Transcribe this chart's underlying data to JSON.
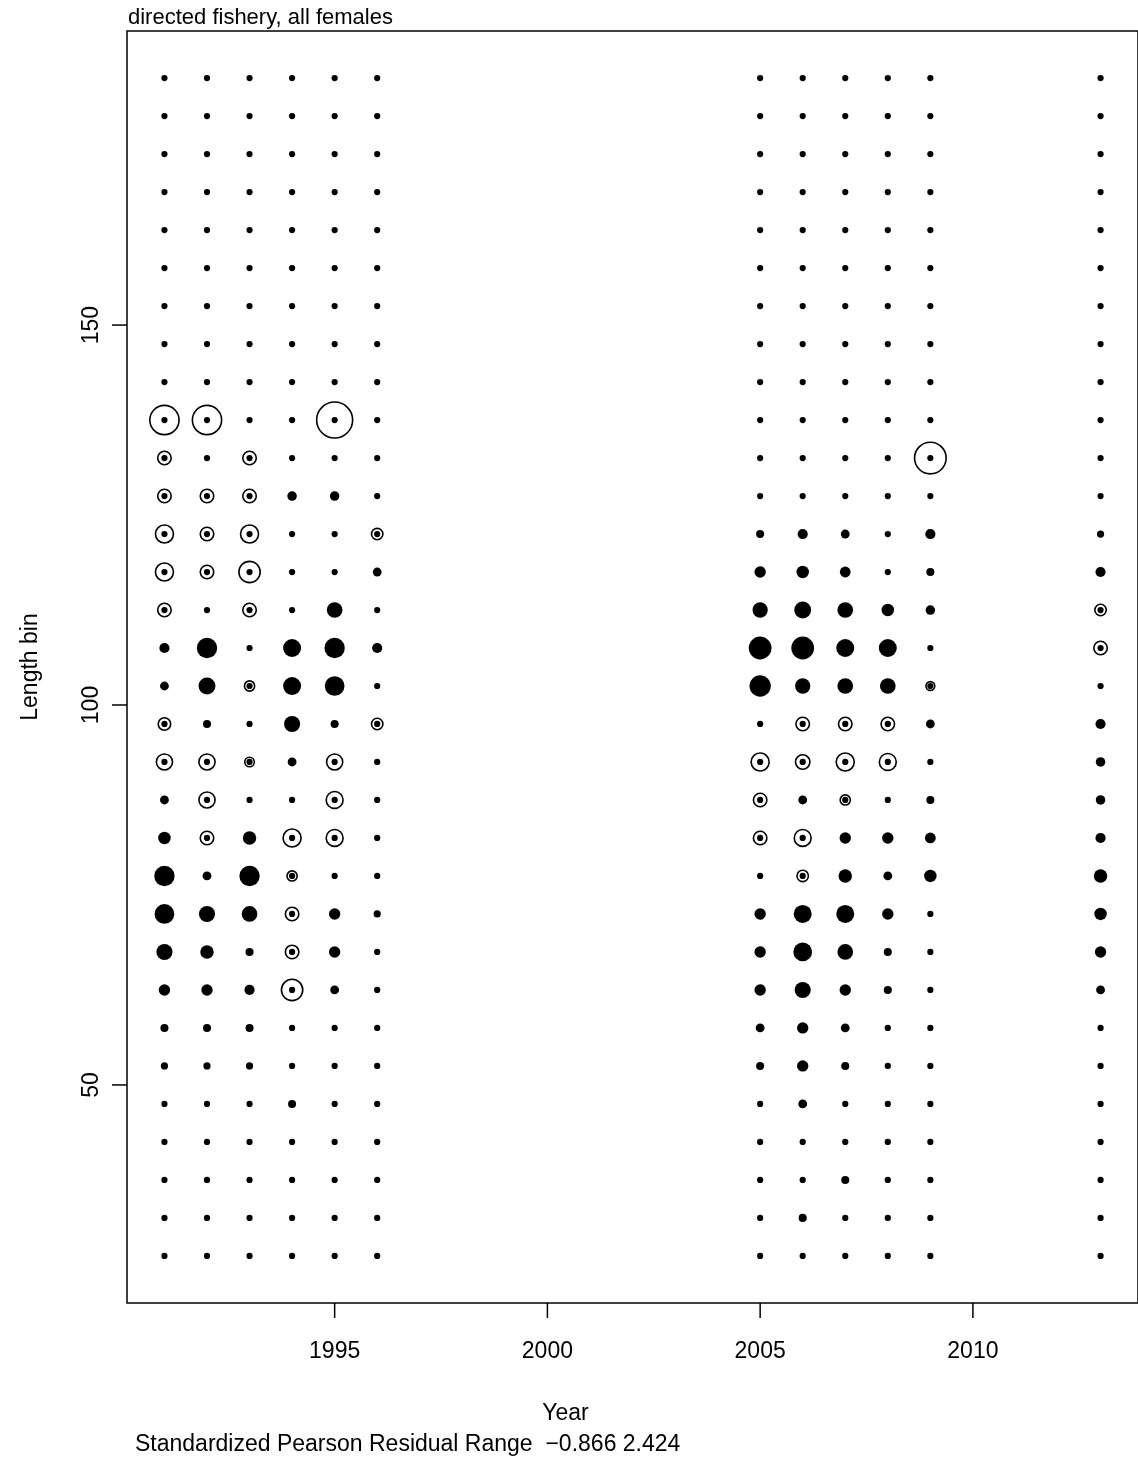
{
  "chart_data": {
    "type": "bubble",
    "title": "directed fishery, all females",
    "xlabel": "Year",
    "ylabel": "Length bin",
    "annotations": [
      "Standardized Pearson Residual Range  −0.866 2.424"
    ],
    "xlim": [
      1990.12,
      2013.88
    ],
    "xticks": [
      1995,
      2000,
      2005,
      2010
    ],
    "ylim": [
      21.3,
      188.7
    ],
    "yticks": [
      50,
      100,
      150
    ],
    "grid": false,
    "marker": "circle",
    "series": [
      {
        "color": "#ffffff",
        "x": [
          1991,
          1991,
          1991,
          1991,
          1991,
          1991,
          1991,
          1991,
          1992,
          1992,
          1992,
          1992,
          1992,
          1992,
          1992,
          1993,
          1993,
          1993,
          1993,
          1993,
          1993,
          1993,
          1994,
          1994,
          1994,
          1994,
          1994,
          1995,
          1995,
          1995,
          1995,
          1996,
          1996,
          2005,
          2005,
          2005,
          2006,
          2006,
          2006,
          2006,
          2007,
          2007,
          2007,
          2008,
          2008,
          2009,
          2009,
          2013,
          2013
        ],
        "values": [
          137.5,
          132.5,
          127.5,
          122.5,
          117.5,
          112.5,
          97.5,
          92.5,
          137.5,
          127.5,
          122.5,
          117.5,
          92.5,
          87.5,
          82.5,
          132.5,
          127.5,
          122.5,
          117.5,
          112.5,
          102.5,
          92.5,
          82.5,
          77.5,
          72.5,
          67.5,
          62.5,
          137.5,
          92.5,
          87.5,
          82.5,
          122.5,
          97.5,
          92.5,
          87.5,
          82.5,
          97.5,
          92.5,
          82.5,
          77.5,
          97.5,
          92.5,
          87.5,
          97.5,
          92.5,
          132.5,
          102.5,
          112.5,
          107.5
        ],
        "sizes": [
          0.66,
          0.14,
          0.14,
          0.25,
          0.25,
          0.14,
          0.12,
          0.2,
          0.66,
          0.14,
          0.14,
          0.14,
          0.2,
          0.2,
          0.14,
          0.14,
          0.14,
          0.25,
          0.35,
          0.14,
          0.08,
          0.07,
          0.25,
          0.08,
          0.14,
          0.14,
          0.35,
          1,
          0.2,
          0.22,
          0.22,
          0.1,
          0.1,
          0.25,
          0.14,
          0.14,
          0.14,
          0.16,
          0.22,
          0.1,
          0.14,
          0.25,
          0.08,
          0.14,
          0.22,
          0.77,
          0.06,
          0.1,
          0.14
        ]
      },
      {
        "color": "#000000",
        "x": [
          1991,
          1991,
          1991,
          1991,
          1991,
          1991,
          1991,
          1991,
          1991,
          1991,
          1991,
          1991,
          1991,
          1991,
          1991,
          1991,
          1991,
          1991,
          1991,
          1991,
          1991,
          1991,
          1991,
          1991,
          1991,
          1991,
          1991,
          1991,
          1991,
          1991,
          1991,
          1991,
          1992,
          1992,
          1992,
          1992,
          1992,
          1992,
          1992,
          1992,
          1992,
          1992,
          1992,
          1992,
          1992,
          1992,
          1992,
          1992,
          1992,
          1992,
          1992,
          1992,
          1992,
          1992,
          1992,
          1992,
          1992,
          1992,
          1992,
          1992,
          1992,
          1992,
          1992,
          1992,
          1993,
          1993,
          1993,
          1993,
          1993,
          1993,
          1993,
          1993,
          1993,
          1993,
          1993,
          1993,
          1993,
          1993,
          1993,
          1993,
          1993,
          1993,
          1993,
          1993,
          1993,
          1993,
          1993,
          1993,
          1993,
          1993,
          1993,
          1993,
          1993,
          1993,
          1993,
          1993,
          1994,
          1994,
          1994,
          1994,
          1994,
          1994,
          1994,
          1994,
          1994,
          1994,
          1994,
          1994,
          1994,
          1994,
          1994,
          1994,
          1994,
          1994,
          1994,
          1994,
          1994,
          1994,
          1994,
          1994,
          1994,
          1994,
          1994,
          1994,
          1994,
          1994,
          1994,
          1994,
          1995,
          1995,
          1995,
          1995,
          1995,
          1995,
          1995,
          1995,
          1995,
          1995,
          1995,
          1995,
          1995,
          1995,
          1995,
          1995,
          1995,
          1995,
          1995,
          1995,
          1995,
          1995,
          1995,
          1995,
          1995,
          1995,
          1995,
          1995,
          1995,
          1995,
          1995,
          1995,
          1996,
          1996,
          1996,
          1996,
          1996,
          1996,
          1996,
          1996,
          1996,
          1996,
          1996,
          1996,
          1996,
          1996,
          1996,
          1996,
          1996,
          1996,
          1996,
          1996,
          1996,
          1996,
          1996,
          1996,
          1996,
          1996,
          1996,
          1996,
          1996,
          1996,
          1996,
          1996,
          2005,
          2005,
          2005,
          2005,
          2005,
          2005,
          2005,
          2005,
          2005,
          2005,
          2005,
          2005,
          2005,
          2005,
          2005,
          2005,
          2005,
          2005,
          2005,
          2005,
          2005,
          2005,
          2005,
          2005,
          2005,
          2005,
          2005,
          2005,
          2005,
          2005,
          2005,
          2005,
          2006,
          2006,
          2006,
          2006,
          2006,
          2006,
          2006,
          2006,
          2006,
          2006,
          2006,
          2006,
          2006,
          2006,
          2006,
          2006,
          2006,
          2006,
          2006,
          2006,
          2006,
          2006,
          2006,
          2006,
          2006,
          2006,
          2006,
          2006,
          2006,
          2006,
          2006,
          2006,
          2007,
          2007,
          2007,
          2007,
          2007,
          2007,
          2007,
          2007,
          2007,
          2007,
          2007,
          2007,
          2007,
          2007,
          2007,
          2007,
          2007,
          2007,
          2007,
          2007,
          2007,
          2007,
          2007,
          2007,
          2007,
          2007,
          2007,
          2007,
          2007,
          2007,
          2007,
          2007,
          2008,
          2008,
          2008,
          2008,
          2008,
          2008,
          2008,
          2008,
          2008,
          2008,
          2008,
          2008,
          2008,
          2008,
          2008,
          2008,
          2008,
          2008,
          2008,
          2008,
          2008,
          2008,
          2008,
          2008,
          2008,
          2008,
          2008,
          2008,
          2008,
          2008,
          2008,
          2008,
          2009,
          2009,
          2009,
          2009,
          2009,
          2009,
          2009,
          2009,
          2009,
          2009,
          2009,
          2009,
          2009,
          2009,
          2009,
          2009,
          2009,
          2009,
          2009,
          2009,
          2009,
          2009,
          2009,
          2009,
          2009,
          2009,
          2009,
          2009,
          2009,
          2009,
          2009,
          2009,
          2013,
          2013,
          2013,
          2013,
          2013,
          2013,
          2013,
          2013,
          2013,
          2013,
          2013,
          2013,
          2013,
          2013,
          2013,
          2013,
          2013,
          2013,
          2013,
          2013,
          2013,
          2013,
          2013,
          2013,
          2013,
          2013,
          2013,
          2013,
          2013,
          2013,
          2013,
          2013
        ],
        "values": [
          182.5,
          177.5,
          172.5,
          167.5,
          162.5,
          157.5,
          152.5,
          147.5,
          142.5,
          137.5,
          132.5,
          127.5,
          122.5,
          117.5,
          112.5,
          107.5,
          102.5,
          97.5,
          92.5,
          87.5,
          82.5,
          77.5,
          72.5,
          67.5,
          62.5,
          57.5,
          52.5,
          47.5,
          42.5,
          37.5,
          32.5,
          27.5,
          182.5,
          177.5,
          172.5,
          167.5,
          162.5,
          157.5,
          152.5,
          147.5,
          142.5,
          137.5,
          132.5,
          127.5,
          122.5,
          117.5,
          112.5,
          107.5,
          102.5,
          97.5,
          92.5,
          87.5,
          82.5,
          77.5,
          72.5,
          67.5,
          62.5,
          57.5,
          52.5,
          47.5,
          42.5,
          37.5,
          32.5,
          27.5,
          182.5,
          177.5,
          172.5,
          167.5,
          162.5,
          157.5,
          152.5,
          147.5,
          142.5,
          137.5,
          132.5,
          127.5,
          122.5,
          117.5,
          112.5,
          107.5,
          102.5,
          97.5,
          92.5,
          87.5,
          82.5,
          77.5,
          72.5,
          67.5,
          62.5,
          57.5,
          52.5,
          47.5,
          42.5,
          37.5,
          32.5,
          27.5,
          182.5,
          177.5,
          172.5,
          167.5,
          162.5,
          157.5,
          152.5,
          147.5,
          142.5,
          137.5,
          132.5,
          127.5,
          122.5,
          117.5,
          112.5,
          107.5,
          102.5,
          97.5,
          92.5,
          87.5,
          82.5,
          77.5,
          72.5,
          67.5,
          62.5,
          57.5,
          52.5,
          47.5,
          42.5,
          37.5,
          32.5,
          27.5,
          182.5,
          177.5,
          172.5,
          167.5,
          162.5,
          157.5,
          152.5,
          147.5,
          142.5,
          137.5,
          132.5,
          127.5,
          122.5,
          117.5,
          112.5,
          107.5,
          102.5,
          97.5,
          92.5,
          87.5,
          82.5,
          77.5,
          72.5,
          67.5,
          62.5,
          57.5,
          52.5,
          47.5,
          42.5,
          37.5,
          32.5,
          27.5,
          182.5,
          177.5,
          172.5,
          167.5,
          162.5,
          157.5,
          152.5,
          147.5,
          142.5,
          137.5,
          132.5,
          127.5,
          122.5,
          117.5,
          112.5,
          107.5,
          102.5,
          97.5,
          92.5,
          87.5,
          82.5,
          77.5,
          72.5,
          67.5,
          62.5,
          57.5,
          52.5,
          47.5,
          42.5,
          37.5,
          32.5,
          27.5,
          182.5,
          177.5,
          172.5,
          167.5,
          162.5,
          157.5,
          152.5,
          147.5,
          142.5,
          137.5,
          132.5,
          127.5,
          122.5,
          117.5,
          112.5,
          107.5,
          102.5,
          97.5,
          92.5,
          87.5,
          82.5,
          77.5,
          72.5,
          67.5,
          62.5,
          57.5,
          52.5,
          47.5,
          42.5,
          37.5,
          32.5,
          27.5,
          182.5,
          177.5,
          172.5,
          167.5,
          162.5,
          157.5,
          152.5,
          147.5,
          142.5,
          137.5,
          132.5,
          127.5,
          122.5,
          117.5,
          112.5,
          107.5,
          102.5,
          97.5,
          92.5,
          87.5,
          82.5,
          77.5,
          72.5,
          67.5,
          62.5,
          57.5,
          52.5,
          47.5,
          42.5,
          37.5,
          32.5,
          27.5,
          182.5,
          177.5,
          172.5,
          167.5,
          162.5,
          157.5,
          152.5,
          147.5,
          142.5,
          137.5,
          132.5,
          127.5,
          122.5,
          117.5,
          112.5,
          107.5,
          102.5,
          97.5,
          92.5,
          87.5,
          82.5,
          77.5,
          72.5,
          67.5,
          62.5,
          57.5,
          52.5,
          47.5,
          42.5,
          37.5,
          32.5,
          27.5,
          182.5,
          177.5,
          172.5,
          167.5,
          162.5,
          157.5,
          152.5,
          147.5,
          142.5,
          137.5,
          132.5,
          127.5,
          122.5,
          117.5,
          112.5,
          107.5,
          102.5,
          97.5,
          92.5,
          87.5,
          82.5,
          77.5,
          72.5,
          67.5,
          62.5,
          57.5,
          52.5,
          47.5,
          42.5,
          37.5,
          32.5,
          27.5,
          182.5,
          177.5,
          172.5,
          167.5,
          162.5,
          157.5,
          152.5,
          147.5,
          142.5,
          137.5,
          132.5,
          127.5,
          122.5,
          117.5,
          112.5,
          107.5,
          102.5,
          97.5,
          92.5,
          87.5,
          82.5,
          77.5,
          72.5,
          67.5,
          62.5,
          57.5,
          52.5,
          47.5,
          42.5,
          37.5,
          32.5,
          27.5,
          182.5,
          177.5,
          172.5,
          167.5,
          162.5,
          157.5,
          152.5,
          147.5,
          142.5,
          137.5,
          132.5,
          127.5,
          122.5,
          117.5,
          112.5,
          107.5,
          102.5,
          97.5,
          92.5,
          87.5,
          82.5,
          77.5,
          72.5,
          67.5,
          62.5,
          57.5,
          52.5,
          47.5,
          42.5,
          37.5,
          32.5,
          27.5
        ],
        "sizes": [
          0.03,
          0.03,
          0.03,
          0.03,
          0.03,
          0.03,
          0.03,
          0.03,
          0.03,
          0.03,
          0.03,
          0.03,
          0.03,
          0.03,
          0.03,
          0.08,
          0.06,
          0.03,
          0.03,
          0.06,
          0.12,
          0.32,
          0.3,
          0.2,
          0.1,
          0.05,
          0.04,
          0.03,
          0.03,
          0.03,
          0.03,
          0.03,
          0.03,
          0.03,
          0.03,
          0.03,
          0.03,
          0.03,
          0.03,
          0.03,
          0.03,
          0.03,
          0.03,
          0.03,
          0.03,
          0.03,
          0.03,
          0.32,
          0.22,
          0.05,
          0.03,
          0.03,
          0.03,
          0.06,
          0.2,
          0.14,
          0.1,
          0.05,
          0.04,
          0.03,
          0.03,
          0.03,
          0.03,
          0.03,
          0.03,
          0.03,
          0.03,
          0.03,
          0.03,
          0.03,
          0.03,
          0.03,
          0.03,
          0.03,
          0.03,
          0.03,
          0.03,
          0.03,
          0.03,
          0.03,
          0.03,
          0.03,
          0.03,
          0.03,
          0.14,
          0.32,
          0.19,
          0.05,
          0.08,
          0.05,
          0.04,
          0.03,
          0.03,
          0.03,
          0.03,
          0.03,
          0.03,
          0.03,
          0.03,
          0.03,
          0.03,
          0.03,
          0.03,
          0.03,
          0.03,
          0.03,
          0.03,
          0.07,
          0.03,
          0.03,
          0.03,
          0.25,
          0.25,
          0.2,
          0.06,
          0.03,
          0.03,
          0.03,
          0.03,
          0.03,
          0.03,
          0.03,
          0.03,
          0.05,
          0.03,
          0.03,
          0.03,
          0.03,
          0.03,
          0.03,
          0.03,
          0.03,
          0.03,
          0.03,
          0.03,
          0.03,
          0.03,
          0.03,
          0.03,
          0.07,
          0.03,
          0.03,
          0.19,
          0.32,
          0.3,
          0.05,
          0.03,
          0.03,
          0.03,
          0.03,
          0.1,
          0.1,
          0.06,
          0.03,
          0.03,
          0.03,
          0.03,
          0.03,
          0.03,
          0.03,
          0.03,
          0.03,
          0.03,
          0.03,
          0.03,
          0.03,
          0.03,
          0.03,
          0.03,
          0.03,
          0.03,
          0.03,
          0.03,
          0.06,
          0.03,
          0.08,
          0.03,
          0.03,
          0.03,
          0.03,
          0.03,
          0.03,
          0.04,
          0.03,
          0.03,
          0.03,
          0.03,
          0.03,
          0.03,
          0.03,
          0.03,
          0.03,
          0.03,
          0.03,
          0.03,
          0.03,
          0.03,
          0.03,
          0.03,
          0.03,
          0.03,
          0.03,
          0.03,
          0.03,
          0.05,
          0.1,
          0.18,
          0.4,
          0.35,
          0.03,
          0.03,
          0.03,
          0.03,
          0.03,
          0.1,
          0.1,
          0.1,
          0.06,
          0.05,
          0.03,
          0.03,
          0.03,
          0.03,
          0.03,
          0.03,
          0.03,
          0.03,
          0.03,
          0.03,
          0.03,
          0.03,
          0.03,
          0.03,
          0.03,
          0.03,
          0.03,
          0.08,
          0.12,
          0.22,
          0.4,
          0.18,
          0.03,
          0.03,
          0.06,
          0.03,
          0.03,
          0.25,
          0.27,
          0.2,
          0.1,
          0.1,
          0.06,
          0.03,
          0.03,
          0.05,
          0.03,
          0.03,
          0.03,
          0.03,
          0.03,
          0.03,
          0.03,
          0.03,
          0.03,
          0.03,
          0.03,
          0.03,
          0.03,
          0.06,
          0.09,
          0.19,
          0.25,
          0.19,
          0.03,
          0.03,
          0.03,
          0.1,
          0.14,
          0.25,
          0.19,
          0.1,
          0.06,
          0.05,
          0.03,
          0.03,
          0.05,
          0.03,
          0.03,
          0.03,
          0.03,
          0.03,
          0.03,
          0.03,
          0.03,
          0.03,
          0.03,
          0.03,
          0.03,
          0.03,
          0.03,
          0.03,
          0.03,
          0.12,
          0.25,
          0.19,
          0.03,
          0.03,
          0.03,
          0.1,
          0.06,
          0.1,
          0.05,
          0.05,
          0.03,
          0.03,
          0.03,
          0.03,
          0.03,
          0.03,
          0.03,
          0.03,
          0.03,
          0.03,
          0.03,
          0.03,
          0.03,
          0.03,
          0.03,
          0.03,
          0.03,
          0.03,
          0.03,
          0.08,
          0.05,
          0.07,
          0.03,
          0.03,
          0.06,
          0.03,
          0.05,
          0.09,
          0.12,
          0.03,
          0.03,
          0.03,
          0.03,
          0.03,
          0.03,
          0.03,
          0.03,
          0.03,
          0.03,
          0.03,
          0.03,
          0.03,
          0.03,
          0.03,
          0.03,
          0.03,
          0.03,
          0.03,
          0.03,
          0.03,
          0.03,
          0.04,
          0.08,
          0.03,
          0.03,
          0.03,
          0.08,
          0.07,
          0.07,
          0.08,
          0.14,
          0.12,
          0.1,
          0.06,
          0.03,
          0.03,
          0.03,
          0.03,
          0.03,
          0.03,
          0.03
        ]
      }
    ]
  }
}
